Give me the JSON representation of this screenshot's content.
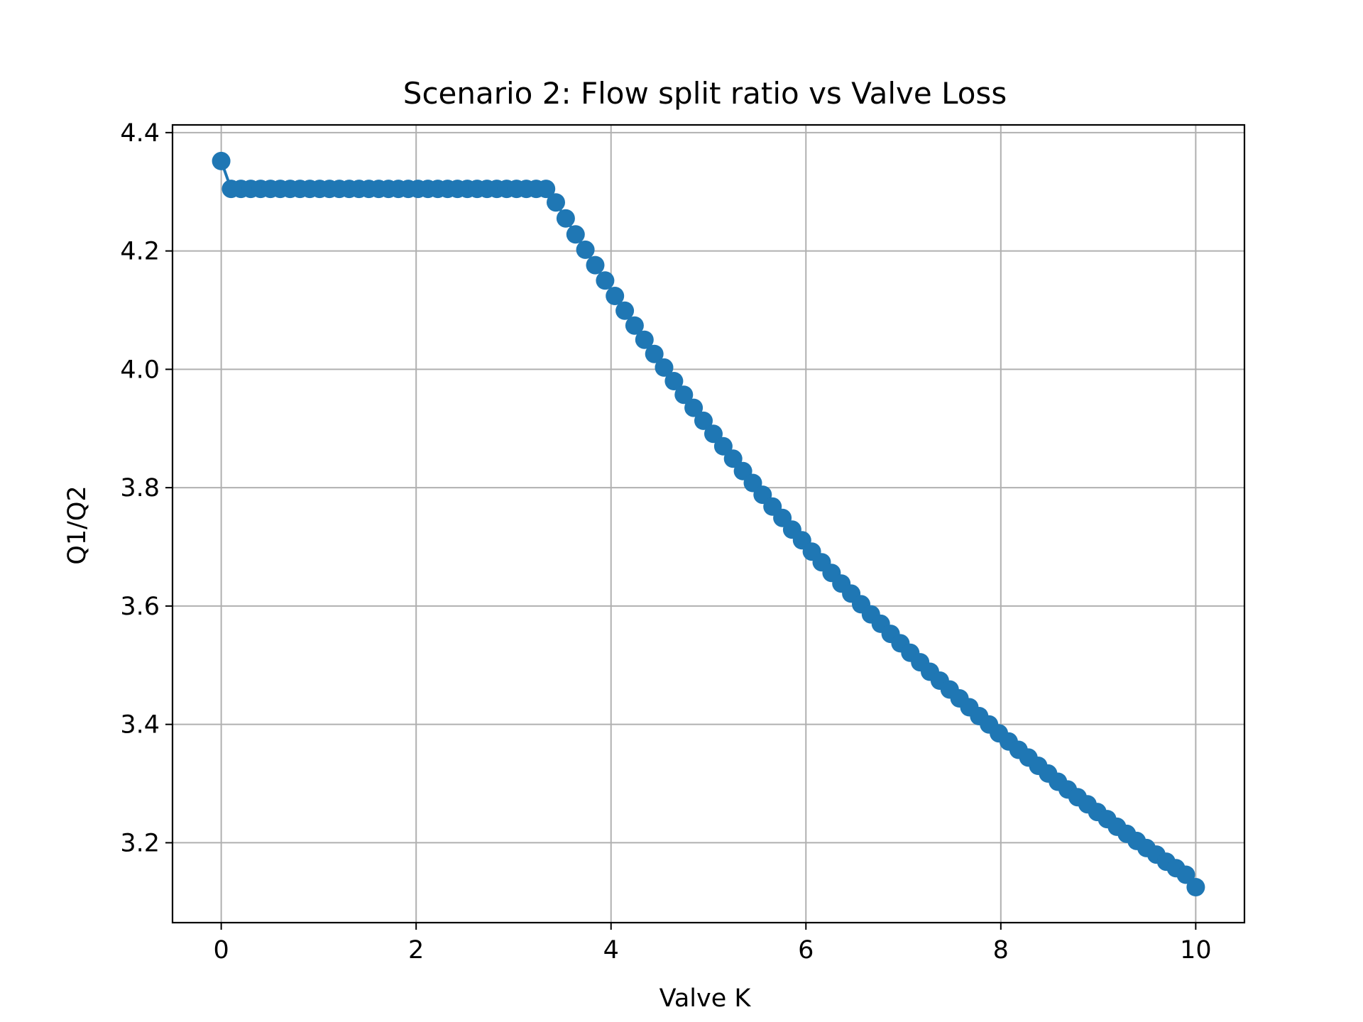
{
  "chart_data": {
    "type": "line",
    "title": "Scenario 2: Flow split ratio vs Valve Loss",
    "xlabel": "Valve K",
    "ylabel": "Q1/Q2",
    "xlim": [
      -0.5,
      10.5
    ],
    "ylim": [
      3.065,
      4.413
    ],
    "xticks": [
      0,
      2,
      4,
      6,
      8,
      10
    ],
    "xtick_labels": [
      "0",
      "2",
      "4",
      "6",
      "8",
      "10"
    ],
    "yticks": [
      3.2,
      3.4,
      3.6,
      3.8,
      4.0,
      4.2,
      4.4
    ],
    "ytick_labels": [
      "3.2",
      "3.4",
      "3.6",
      "3.8",
      "4.0",
      "4.2",
      "4.4"
    ],
    "grid": true,
    "legend": "none",
    "marker": "circle",
    "series": [
      {
        "color": "#1f77b4",
        "x": [
          0,
          0.101,
          0.202,
          0.303,
          0.404,
          0.505,
          0.606,
          0.707,
          0.808,
          0.909,
          1.01,
          1.111,
          1.212,
          1.313,
          1.414,
          1.515,
          1.616,
          1.717,
          1.818,
          1.919,
          2.02,
          2.121,
          2.222,
          2.323,
          2.424,
          2.525,
          2.626,
          2.727,
          2.828,
          2.929,
          3.03,
          3.131,
          3.232,
          3.333,
          3.434,
          3.535,
          3.636,
          3.737,
          3.838,
          3.939,
          4.04,
          4.141,
          4.242,
          4.343,
          4.444,
          4.545,
          4.646,
          4.747,
          4.848,
          4.949,
          5.051,
          5.152,
          5.253,
          5.354,
          5.455,
          5.556,
          5.657,
          5.758,
          5.859,
          5.96,
          6.061,
          6.162,
          6.263,
          6.364,
          6.465,
          6.566,
          6.667,
          6.768,
          6.869,
          6.97,
          7.071,
          7.172,
          7.273,
          7.374,
          7.475,
          7.576,
          7.677,
          7.778,
          7.879,
          7.98,
          8.081,
          8.182,
          8.283,
          8.384,
          8.485,
          8.586,
          8.687,
          8.788,
          8.889,
          8.99,
          9.091,
          9.192,
          9.293,
          9.394,
          9.495,
          9.596,
          9.697,
          9.798,
          9.899,
          10
        ],
        "y": [
          4.352,
          4.305,
          4.305,
          4.305,
          4.305,
          4.305,
          4.305,
          4.305,
          4.305,
          4.305,
          4.305,
          4.305,
          4.305,
          4.305,
          4.305,
          4.305,
          4.305,
          4.305,
          4.305,
          4.305,
          4.305,
          4.305,
          4.305,
          4.305,
          4.305,
          4.305,
          4.305,
          4.305,
          4.305,
          4.305,
          4.305,
          4.305,
          4.305,
          4.305,
          4.282,
          4.255,
          4.228,
          4.202,
          4.176,
          4.15,
          4.124,
          4.099,
          4.074,
          4.05,
          4.026,
          4.003,
          3.98,
          3.957,
          3.935,
          3.913,
          3.891,
          3.87,
          3.849,
          3.828,
          3.808,
          3.788,
          3.768,
          3.749,
          3.729,
          3.711,
          3.692,
          3.674,
          3.656,
          3.638,
          3.621,
          3.603,
          3.586,
          3.57,
          3.553,
          3.537,
          3.521,
          3.505,
          3.489,
          3.474,
          3.459,
          3.444,
          3.429,
          3.414,
          3.4,
          3.385,
          3.371,
          3.357,
          3.344,
          3.33,
          3.317,
          3.303,
          3.29,
          3.277,
          3.265,
          3.252,
          3.24,
          3.227,
          3.215,
          3.203,
          3.191,
          3.18,
          3.168,
          3.157,
          3.146,
          3.125
        ]
      }
    ]
  }
}
